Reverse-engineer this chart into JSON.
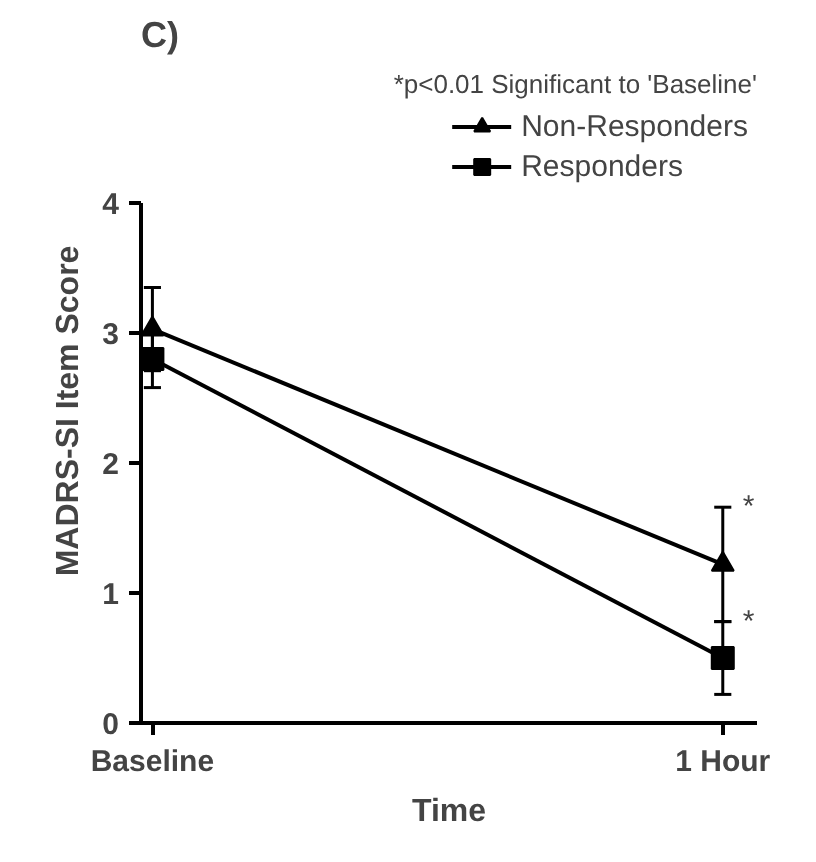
{
  "chart_data": {
    "type": "line",
    "title": "C)",
    "xlabel": "Time",
    "ylabel": "MADRS-SI Item Score",
    "categories": [
      "Baseline",
      "1 Hour"
    ],
    "series": [
      {
        "name": "Non-Responders",
        "color": "#000000",
        "marker": "triangle",
        "values": [
          3.03,
          1.22
        ],
        "errors": [
          0.32,
          0.44
        ]
      },
      {
        "name": "Responders",
        "color": "#000000",
        "marker": "square",
        "values": [
          2.8,
          0.5
        ],
        "errors": [
          0.22,
          0.28
        ]
      }
    ],
    "annotations": [
      "*p<0.01 Significant to 'Baseline'",
      {
        "text": "*",
        "x": "1 Hour",
        "y": 1.66
      },
      {
        "text": "*",
        "x": "1 Hour",
        "y": 0.78
      }
    ],
    "ylim": [
      0,
      4
    ],
    "yticks": [
      0,
      1,
      2,
      3,
      4
    ],
    "grid": false,
    "legend": "top right",
    "line_style": "solid"
  }
}
